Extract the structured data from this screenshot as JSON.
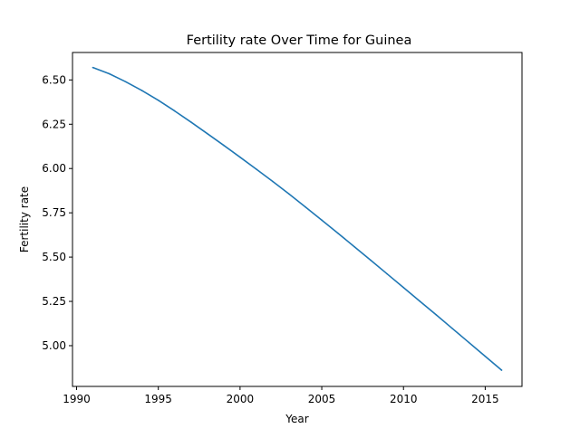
{
  "chart_data": {
    "type": "line",
    "title": "Fertility rate Over Time for Guinea",
    "xlabel": "Year",
    "ylabel": "Fertility rate",
    "xlim": [
      1989.75,
      2017.25
    ],
    "ylim": [
      4.77,
      6.655
    ],
    "xticks": [
      1990,
      1995,
      2000,
      2005,
      2010,
      2015
    ],
    "yticks": [
      5.0,
      5.25,
      5.5,
      5.75,
      6.0,
      6.25,
      6.5
    ],
    "ytick_labels": [
      "5.00",
      "5.25",
      "5.50",
      "5.75",
      "6.00",
      "6.25",
      "6.50"
    ],
    "grid": false,
    "line_color": "#1f77b4",
    "series": [
      {
        "x": [
          1991,
          1992,
          1993,
          1994,
          1995,
          1996,
          1997,
          1998,
          1999,
          2000,
          2001,
          2002,
          2003,
          2004,
          2005,
          2006,
          2007,
          2008,
          2009,
          2010,
          2011,
          2012,
          2013,
          2014,
          2015,
          2016
        ],
        "values": [
          6.57,
          6.535,
          6.49,
          6.44,
          6.385,
          6.325,
          6.262,
          6.197,
          6.131,
          6.064,
          5.996,
          5.927,
          5.856,
          5.783,
          5.709,
          5.634,
          5.558,
          5.482,
          5.405,
          5.328,
          5.251,
          5.174,
          5.096,
          5.018,
          4.94,
          4.862
        ]
      }
    ]
  }
}
